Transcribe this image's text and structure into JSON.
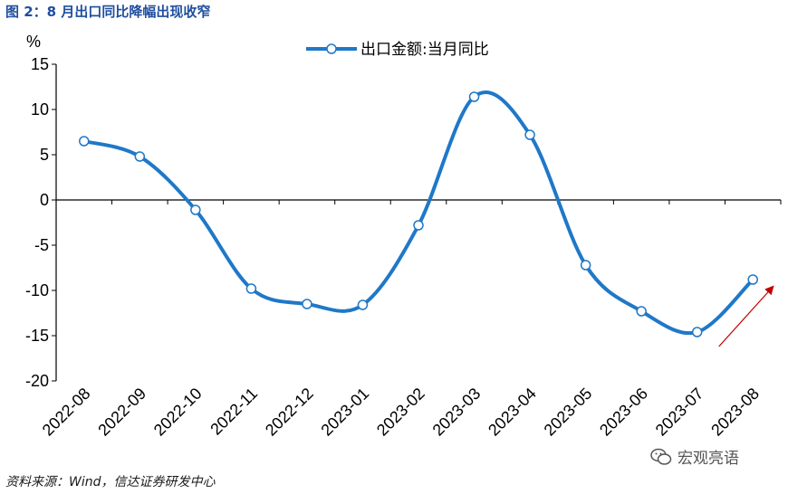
{
  "header": {
    "title": "图 2：8 月出口同比降幅出现收窄"
  },
  "footer": {
    "source": "资料来源：Wind，信达证券研发中心",
    "watermark": "宏观亮语"
  },
  "colors": {
    "line": "#1f78c8",
    "marker_fill": "#ffffff",
    "arrow": "#c00000",
    "title": "#1f4e9e"
  },
  "icons": {
    "watermark": "wechat-icon"
  },
  "chart_data": {
    "type": "line",
    "title": "",
    "ylabel": "%",
    "xlabel": "",
    "ylim": [
      -20,
      15
    ],
    "yticks": [
      15,
      10,
      5,
      0,
      -5,
      -10,
      -15,
      -20
    ],
    "legend": "top-center",
    "grid": false,
    "categories": [
      "2022-08",
      "2022-09",
      "2022-10",
      "2022-11",
      "2022-12",
      "2023-01",
      "2023-02",
      "2023-03",
      "2023-04",
      "2023-05",
      "2023-06",
      "2023-07",
      "2023-08"
    ],
    "series": [
      {
        "name": "出口金额:当月同比",
        "values": [
          6.5,
          4.8,
          -1.1,
          -9.8,
          -11.5,
          -11.6,
          -2.8,
          11.4,
          7.2,
          -7.2,
          -12.3,
          -14.6,
          -8.8
        ]
      }
    ],
    "annotations": [
      {
        "type": "arrow",
        "color": "#c00000",
        "description": "upward-trend-arrow"
      }
    ]
  }
}
